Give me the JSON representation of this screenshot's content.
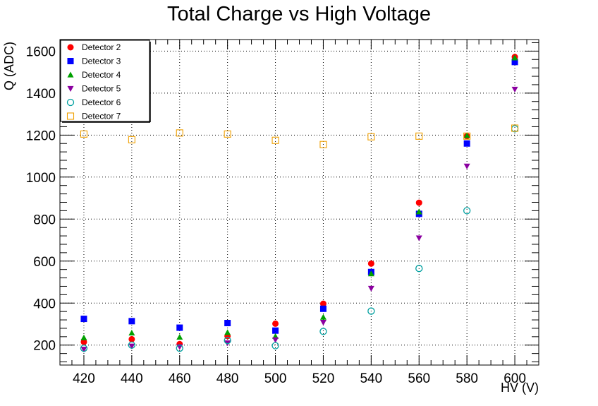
{
  "chart_data": {
    "type": "scatter",
    "title": "Total Charge vs High Voltage",
    "xlabel": "HV (V)",
    "ylabel": "Q (ADC)",
    "xlim": [
      410,
      610
    ],
    "ylim": [
      105,
      1655
    ],
    "xticks": [
      420,
      440,
      460,
      480,
      500,
      520,
      540,
      560,
      580,
      600
    ],
    "yticks": [
      200,
      400,
      600,
      800,
      1000,
      1200,
      1400,
      1600
    ],
    "grid": true,
    "legend_position": "top-left",
    "series": [
      {
        "name": "Detector 2",
        "marker": "filled-circle",
        "color": "#ff0000",
        "x": [
          420,
          440,
          460,
          480,
          500,
          520,
          540,
          560,
          580,
          600
        ],
        "y": [
          215,
          228,
          205,
          243,
          302,
          397,
          588,
          878,
          1195,
          1572
        ]
      },
      {
        "name": "Detector 3",
        "marker": "filled-square",
        "color": "#0000ff",
        "x": [
          420,
          440,
          460,
          480,
          500,
          520,
          540,
          560,
          580,
          600
        ],
        "y": [
          325,
          314,
          283,
          305,
          269,
          373,
          548,
          825,
          1160,
          1548
        ]
      },
      {
        "name": "Detector 4",
        "marker": "filled-triangle-up",
        "color": "#00a000",
        "x": [
          420,
          440,
          460,
          480,
          500,
          520,
          540,
          560,
          580,
          600
        ],
        "y": [
          235,
          258,
          238,
          260,
          242,
          333,
          540,
          835,
          1198,
          1568
        ]
      },
      {
        "name": "Detector 5",
        "marker": "filled-triangle-down",
        "color": "#8b00a0",
        "x": [
          420,
          440,
          460,
          480,
          500,
          520,
          540,
          560,
          580,
          600
        ],
        "y": [
          180,
          195,
          192,
          210,
          225,
          308,
          470,
          710,
          1052,
          1418
        ]
      },
      {
        "name": "Detector 6",
        "marker": "open-circle",
        "color": "#00a0a0",
        "x": [
          420,
          440,
          460,
          480,
          500,
          520,
          540,
          560,
          580,
          600
        ],
        "y": [
          185,
          200,
          185,
          222,
          197,
          265,
          362,
          565,
          840,
          1230
        ]
      },
      {
        "name": "Detector 7",
        "marker": "open-square",
        "color": "#f0a000",
        "x": [
          420,
          440,
          460,
          480,
          500,
          520,
          540,
          560,
          580,
          600
        ],
        "y": [
          1205,
          1178,
          1210,
          1205,
          1175,
          1155,
          1192,
          1195,
          1195,
          1233
        ]
      }
    ]
  }
}
